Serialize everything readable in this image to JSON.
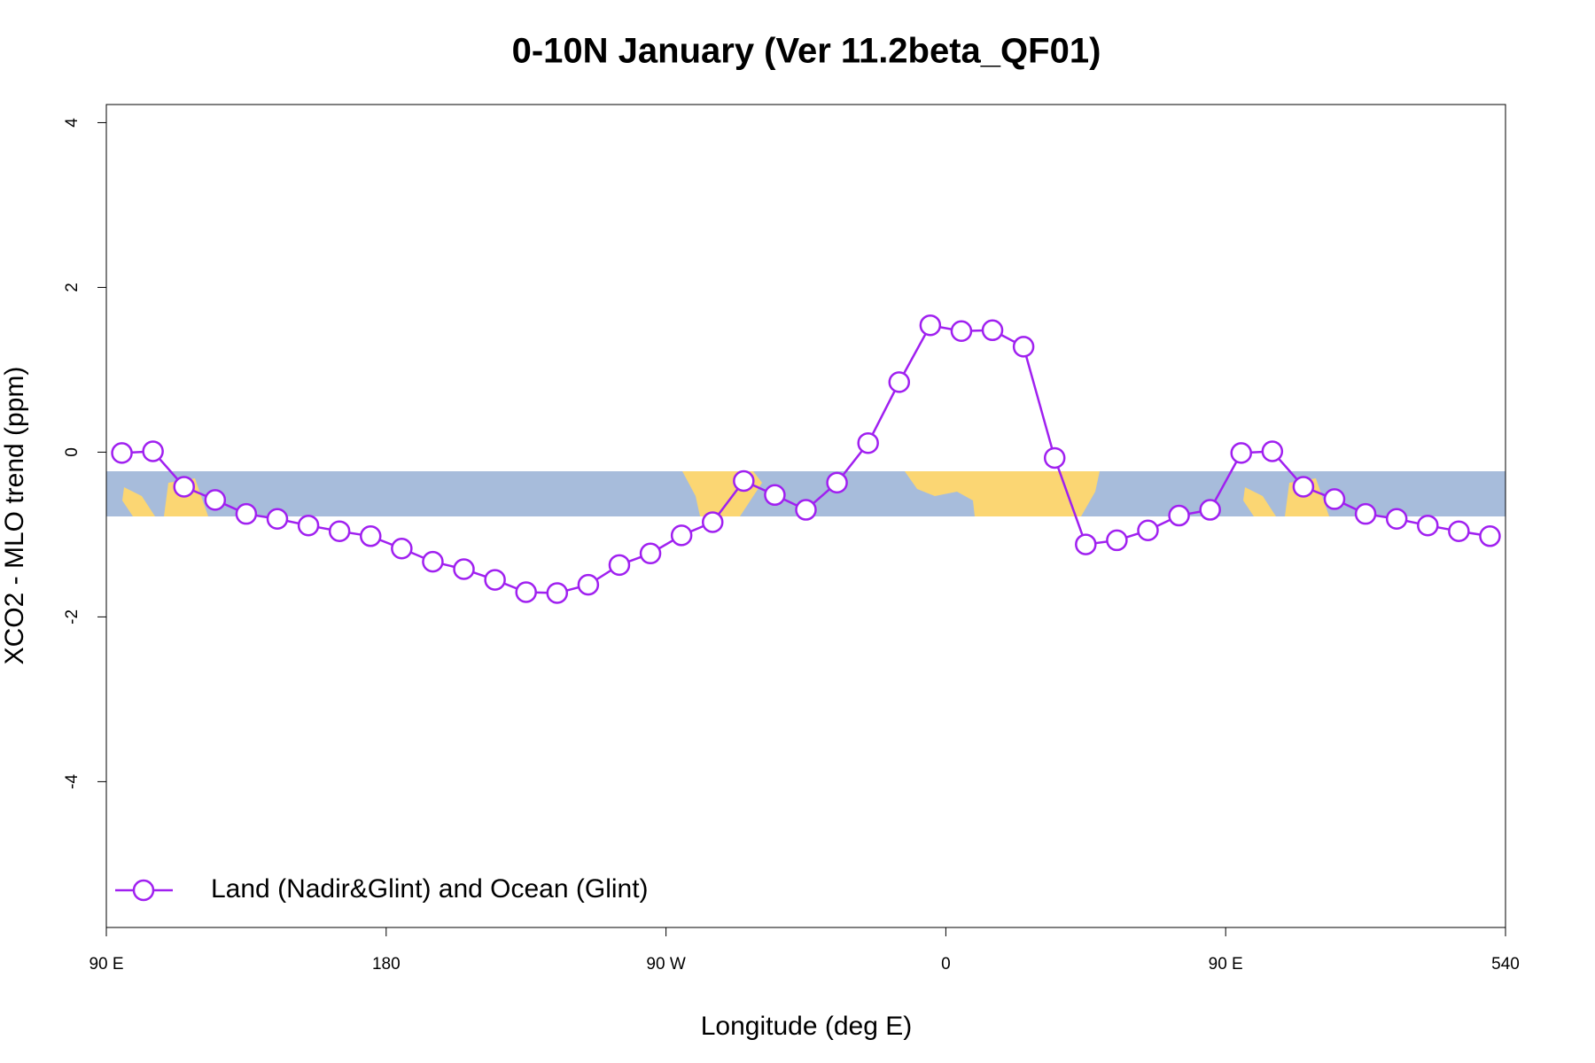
{
  "chart_data": {
    "type": "line",
    "title": "0-10N January (Ver 11.2beta_QF01)",
    "x_label": "Longitude (deg E)",
    "y_label": "XCO2 - MLO trend (ppm)",
    "x": [
      95,
      105,
      115,
      125,
      135,
      145,
      155,
      165,
      175,
      185,
      195,
      205,
      215,
      225,
      235,
      245,
      255,
      265,
      275,
      285,
      295,
      305,
      315,
      325,
      335,
      345,
      355,
      365,
      375,
      385,
      395,
      405,
      415,
      425,
      435,
      445,
      455,
      465,
      475,
      485,
      495,
      505,
      515,
      525,
      535
    ],
    "series": [
      {
        "name": "Land (Nadir&Glint) and Ocean (Glint)",
        "color": "#a020f0",
        "values": [
          -0.01,
          0.01,
          -0.42,
          -0.58,
          -0.75,
          -0.81,
          -0.89,
          -0.96,
          -1.02,
          -1.17,
          -1.33,
          -1.42,
          -1.55,
          -1.7,
          -1.71,
          -1.61,
          -1.37,
          -1.23,
          -1.01,
          -0.85,
          -0.35,
          -0.52,
          -0.7,
          -0.37,
          0.11,
          0.85,
          1.54,
          1.47,
          1.48,
          1.28,
          -0.07,
          -1.12,
          -1.07,
          -0.95,
          -0.77,
          -0.7,
          -0.01,
          0.01,
          -0.42,
          -0.57,
          -0.75,
          -0.81,
          -0.89,
          -0.96,
          -1.02
        ]
      }
    ],
    "xlim": [
      90,
      540
    ],
    "xticks": [
      {
        "value": 90,
        "label": "90 E"
      },
      180,
      {
        "value": 270,
        "label": "90 W"
      },
      {
        "value": 360,
        "label": "0"
      },
      {
        "value": 450,
        "label": "90 E"
      },
      540
    ],
    "ylim": [
      -5.77,
      4.22
    ],
    "yticks": [
      -4,
      -2,
      0,
      2,
      4
    ],
    "legend": "bottomleft"
  }
}
